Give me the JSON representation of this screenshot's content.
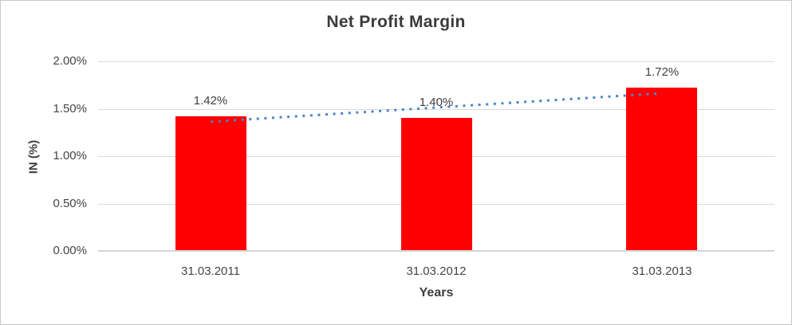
{
  "chart_data": {
    "type": "bar",
    "title": "Net Profit Margin",
    "xlabel": "Years",
    "ylabel": "IN (%)",
    "categories": [
      "31.03.2011",
      "31.03.2012",
      "31.03.2013"
    ],
    "values": [
      1.42,
      1.4,
      1.72
    ],
    "data_labels": [
      "1.42%",
      "1.40%",
      "1.72%"
    ],
    "yticks": [
      0,
      0.5,
      1.0,
      1.5,
      2.0
    ],
    "ytick_labels": [
      "0.00%",
      "0.50%",
      "1.00%",
      "1.50%",
      "2.00%"
    ],
    "ylim": [
      0,
      2.0
    ],
    "grid": true,
    "legend": "none",
    "bar_color": "#FF0000",
    "label_color": "#404040",
    "gridline_color": "#DADADA",
    "trendline": {
      "type": "linear",
      "style": "dotted",
      "color": "#4A86C8",
      "start_category_index": 0,
      "end_category_index": 2,
      "start_value": 1.363,
      "end_value": 1.663
    }
  }
}
